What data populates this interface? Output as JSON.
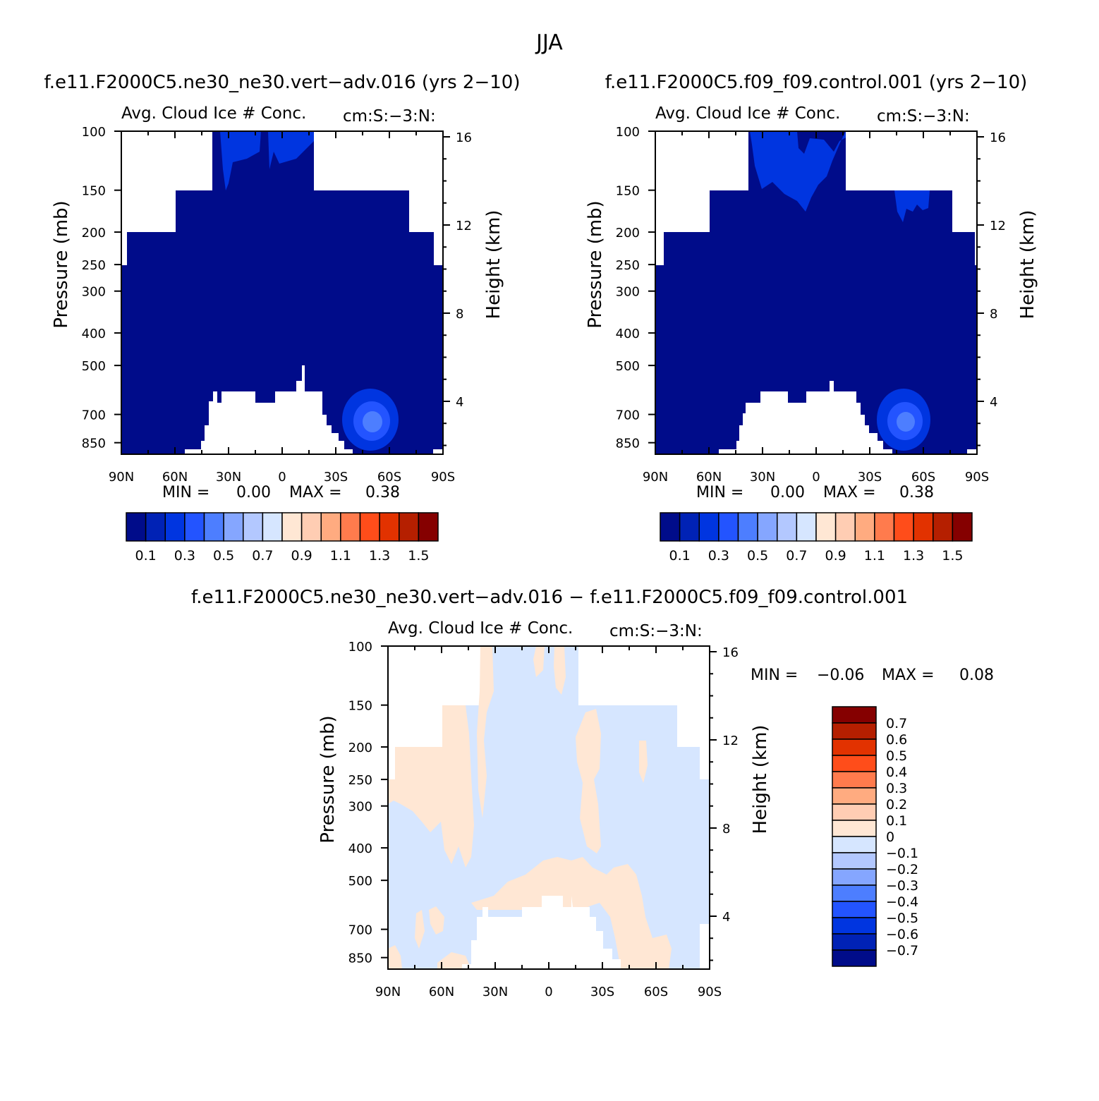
{
  "figure": {
    "season": "JJA",
    "bottom_title": "f.e11.F2000C5.ne30_ne30.vert-adv.016 - f.e11.F2000C5.f09_f09.control.001"
  },
  "chart_data": [
    {
      "type": "heatmap",
      "id": "left",
      "case_title": "f.e11.F2000C5.ne30_ne30.vert-adv.016 (yrs 2-10)",
      "title": "Avg. Cloud Ice # Conc.",
      "units": "cm:S:-3:N:",
      "xlabel": "",
      "ylabel": "Pressure (mb)",
      "y2label": "Height (km)",
      "x_ticks": [
        "90N",
        "60N",
        "30N",
        "0",
        "30S",
        "60S",
        "90S"
      ],
      "y_ticks": [
        100,
        150,
        200,
        250,
        300,
        400,
        500,
        700,
        850
      ],
      "y2_ticks": [
        16,
        12,
        8,
        4
      ],
      "y_scale": "log",
      "stats": {
        "min_label": "MIN =",
        "min": "0.00",
        "max_label": "MAX =",
        "max": "0.38"
      },
      "colorbar": {
        "orientation": "horizontal",
        "labels": [
          "0.1",
          "0.3",
          "0.5",
          "0.7",
          "0.9",
          "1.1",
          "1.3",
          "1.5"
        ],
        "colors": [
          "#000c8a",
          "#0022b5",
          "#0035e0",
          "#2354ff",
          "#4d7eff",
          "#85a6ff",
          "#b3c8ff",
          "#d6e6ff",
          "#ffe7d4",
          "#ffcdb3",
          "#ffab80",
          "#ff7b4d",
          "#ff4d1a",
          "#e23200",
          "#b51f00",
          "#850000"
        ]
      },
      "features": [
        {
          "name": "mid-lat-max",
          "lat_center": -50,
          "pressure_center": 720,
          "max_level_value": 0.38
        }
      ]
    },
    {
      "type": "heatmap",
      "id": "right",
      "case_title": "f.e11.F2000C5.f09_f09.control.001 (yrs 2-10)",
      "title": "Avg. Cloud Ice # Conc.",
      "units": "cm:S:-3:N:",
      "xlabel": "",
      "ylabel": "Pressure (mb)",
      "y2label": "Height (km)",
      "x_ticks": [
        "90N",
        "60N",
        "30N",
        "0",
        "30S",
        "60S",
        "90S"
      ],
      "y_ticks": [
        100,
        150,
        200,
        250,
        300,
        400,
        500,
        700,
        850
      ],
      "y2_ticks": [
        16,
        12,
        8,
        4
      ],
      "y_scale": "log",
      "stats": {
        "min_label": "MIN =",
        "min": "0.00",
        "max_label": "MAX =",
        "max": "0.38"
      },
      "colorbar": {
        "orientation": "horizontal",
        "labels": [
          "0.1",
          "0.3",
          "0.5",
          "0.7",
          "0.9",
          "1.1",
          "1.3",
          "1.5"
        ],
        "colors": [
          "#000c8a",
          "#0022b5",
          "#0035e0",
          "#2354ff",
          "#4d7eff",
          "#85a6ff",
          "#b3c8ff",
          "#d6e6ff",
          "#ffe7d4",
          "#ffcdb3",
          "#ffab80",
          "#ff7b4d",
          "#ff4d1a",
          "#e23200",
          "#b51f00",
          "#850000"
        ]
      }
    },
    {
      "type": "heatmap",
      "id": "diff",
      "title": "Avg. Cloud Ice # Conc.",
      "units": "cm:S:-3:N:",
      "xlabel": "",
      "ylabel": "Pressure (mb)",
      "y2label": "Height (km)",
      "x_ticks": [
        "90N",
        "60N",
        "30N",
        "0",
        "30S",
        "60S",
        "90S"
      ],
      "y_ticks": [
        100,
        150,
        200,
        250,
        300,
        400,
        500,
        700,
        850
      ],
      "y2_ticks": [
        16,
        12,
        8,
        4
      ],
      "y_scale": "log",
      "stats": {
        "min_label": "MIN =",
        "min": "-0.06",
        "max_label": "MAX =",
        "max": "0.08"
      },
      "colorbar": {
        "orientation": "vertical",
        "labels": [
          "0.7",
          "0.6",
          "0.5",
          "0.4",
          "0.3",
          "0.2",
          "0.1",
          "0",
          "-0.1",
          "-0.2",
          "-0.3",
          "-0.4",
          "-0.5",
          "-0.6",
          "-0.7"
        ],
        "colors": [
          "#850000",
          "#b51f00",
          "#e23200",
          "#ff4d1a",
          "#ff7b4d",
          "#ffab80",
          "#ffcdb3",
          "#ffe7d4",
          "#d6e6ff",
          "#b3c8ff",
          "#85a6ff",
          "#4d7eff",
          "#2354ff",
          "#0035e0",
          "#0022b5",
          "#000c8a"
        ]
      }
    }
  ]
}
